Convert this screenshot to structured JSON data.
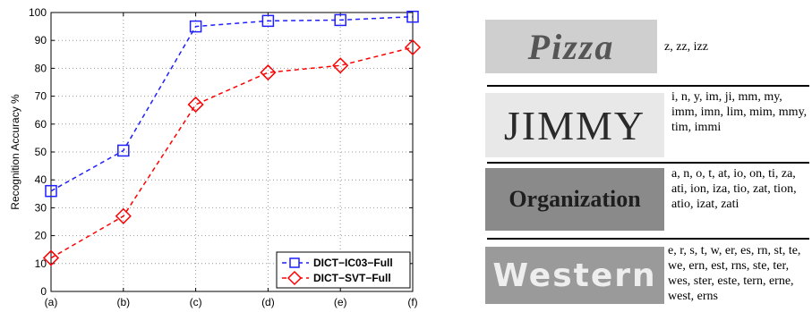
{
  "chart_data": {
    "type": "line",
    "categories": [
      "(a)",
      "(b)",
      "(c)",
      "(d)",
      "(e)",
      "(f)"
    ],
    "ylabel": "Recognition Accuracy %",
    "ylim": [
      0,
      100
    ],
    "yticks": [
      0,
      10,
      20,
      30,
      40,
      50,
      60,
      70,
      80,
      90,
      100
    ],
    "grid": true,
    "legend_position": "bottom-right",
    "series": [
      {
        "name": "DICT−IC03−Full",
        "values": [
          36,
          50.5,
          95,
          97,
          97.3,
          98.5
        ],
        "color": "#1f1fff",
        "marker": "square",
        "line": "dashed"
      },
      {
        "name": "DICT−SVT−Full",
        "values": [
          12,
          27,
          67,
          78.5,
          81,
          87.5
        ],
        "color": "#ff0000",
        "marker": "diamond",
        "line": "dashed"
      }
    ]
  },
  "samples": [
    {
      "word": "Pizza",
      "candidates": "z, zz, izz"
    },
    {
      "word": "JIMMY",
      "candidates": "i, n, y, im, ji, mm, my, imm, imn, lim, mim, mmy, tim, immi"
    },
    {
      "word": "Organization",
      "candidates": "a, n, o, t, at, io, on, ti, za, ati, ion, iza, tio, zat, tion, atio, izat, zati"
    },
    {
      "word": "Western",
      "candidates": "e, r, s, t, w, er, es, rn, st, te, we, ern, est, rns, ste, ter, wes, ster, este, tern, erne, west, erns"
    }
  ]
}
